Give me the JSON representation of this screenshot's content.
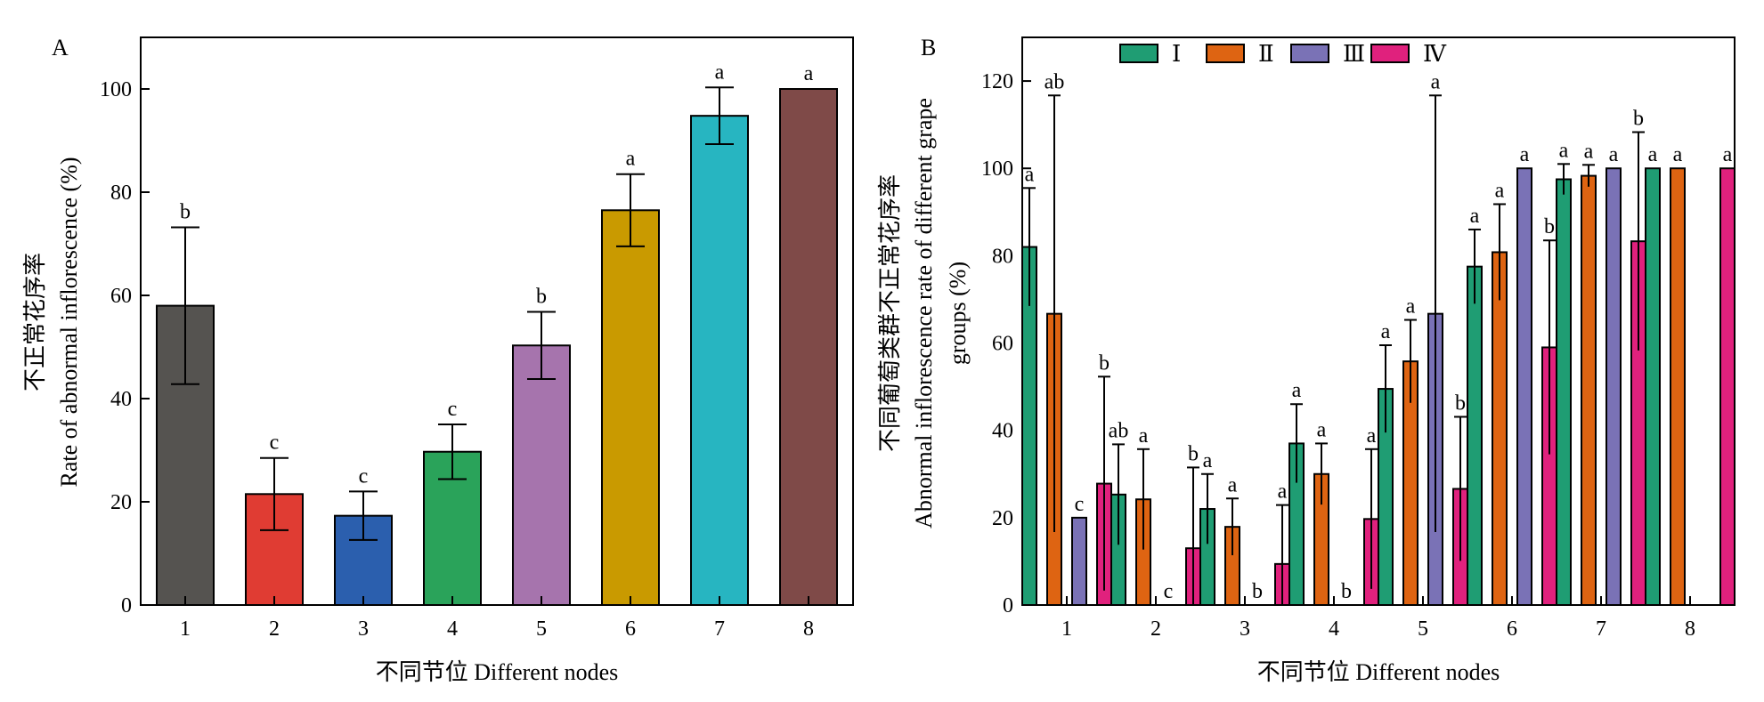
{
  "chart_data": [
    {
      "type": "bar",
      "panel_label": "A",
      "categories": [
        "1",
        "2",
        "3",
        "4",
        "5",
        "6",
        "7",
        "8"
      ],
      "values": [
        58,
        21.5,
        17.3,
        29.7,
        50.3,
        76.5,
        94.8,
        100
      ],
      "errors": [
        15.2,
        7,
        4.7,
        5.3,
        6.5,
        7,
        5.5,
        0
      ],
      "significance": [
        "b",
        "c",
        "c",
        "c",
        "b",
        "a",
        "a",
        "a"
      ],
      "colors": [
        "#555350",
        "#e03c33",
        "#2b5fae",
        "#2aa35a",
        "#a674ad",
        "#c99a00",
        "#27b5c1",
        "#7f4a48"
      ],
      "xlabel": "不同节位 Different nodes",
      "ylabel_line1": "不正常花序率",
      "ylabel_line2": "Rate of abnormal inflorescence (%)",
      "yticks": [
        0,
        20,
        40,
        60,
        80,
        100
      ],
      "ylim": [
        0,
        110
      ],
      "grid": false
    },
    {
      "type": "bar",
      "panel_label": "B",
      "categories": [
        "1",
        "2",
        "3",
        "4",
        "5",
        "6",
        "7",
        "8"
      ],
      "series": [
        {
          "name": "Ⅰ",
          "color": "#1f9d73",
          "values": [
            82,
            25.3,
            22,
            37,
            49.5,
            77.5,
            97.5,
            100
          ],
          "errors": [
            13.5,
            11.5,
            8,
            9,
            10,
            8.5,
            3.5,
            0
          ],
          "significance": [
            "a",
            "ab",
            "a",
            "a",
            "a",
            "a",
            "a",
            "a"
          ]
        },
        {
          "name": "Ⅱ",
          "color": "#de6412",
          "values": [
            66.7,
            24.2,
            17.9,
            30,
            55.8,
            80.8,
            98.3,
            100
          ],
          "errors": [
            50,
            11.5,
            6.5,
            7,
            9.5,
            11,
            2.5,
            0
          ],
          "significance": [
            "ab",
            "a",
            "a",
            "a",
            "a",
            "a",
            "a",
            "a"
          ]
        },
        {
          "name": "Ⅲ",
          "color": "#7a72b6",
          "values": [
            20,
            0,
            0,
            0,
            66.7,
            100,
            100,
            null
          ],
          "errors": [
            0,
            0,
            0,
            0,
            50,
            0,
            0,
            null
          ],
          "significance": [
            "c",
            "c",
            "b",
            "b",
            "a",
            "a",
            "a",
            ""
          ]
        },
        {
          "name": "Ⅳ",
          "color": "#e0217d",
          "values": [
            27.8,
            13,
            9.4,
            19.7,
            26.6,
            59,
            83.3,
            100
          ],
          "errors": [
            24.5,
            18.5,
            13.5,
            16,
            16.5,
            24.5,
            25,
            0
          ],
          "significance": [
            "b",
            "b",
            "a",
            "a",
            "b",
            "b",
            "b",
            "a"
          ]
        }
      ],
      "xlabel": "不同节位 Different nodes",
      "ylabel_line1": "不同葡萄类群不正常花序率",
      "ylabel_line2": "Abnormal inflorescence rate of different grape",
      "ylabel_line3": "groups (%)",
      "yticks": [
        0,
        20,
        40,
        60,
        80,
        100,
        120
      ],
      "ylim": [
        0,
        130
      ],
      "legend_position": "top",
      "grid": false
    }
  ]
}
